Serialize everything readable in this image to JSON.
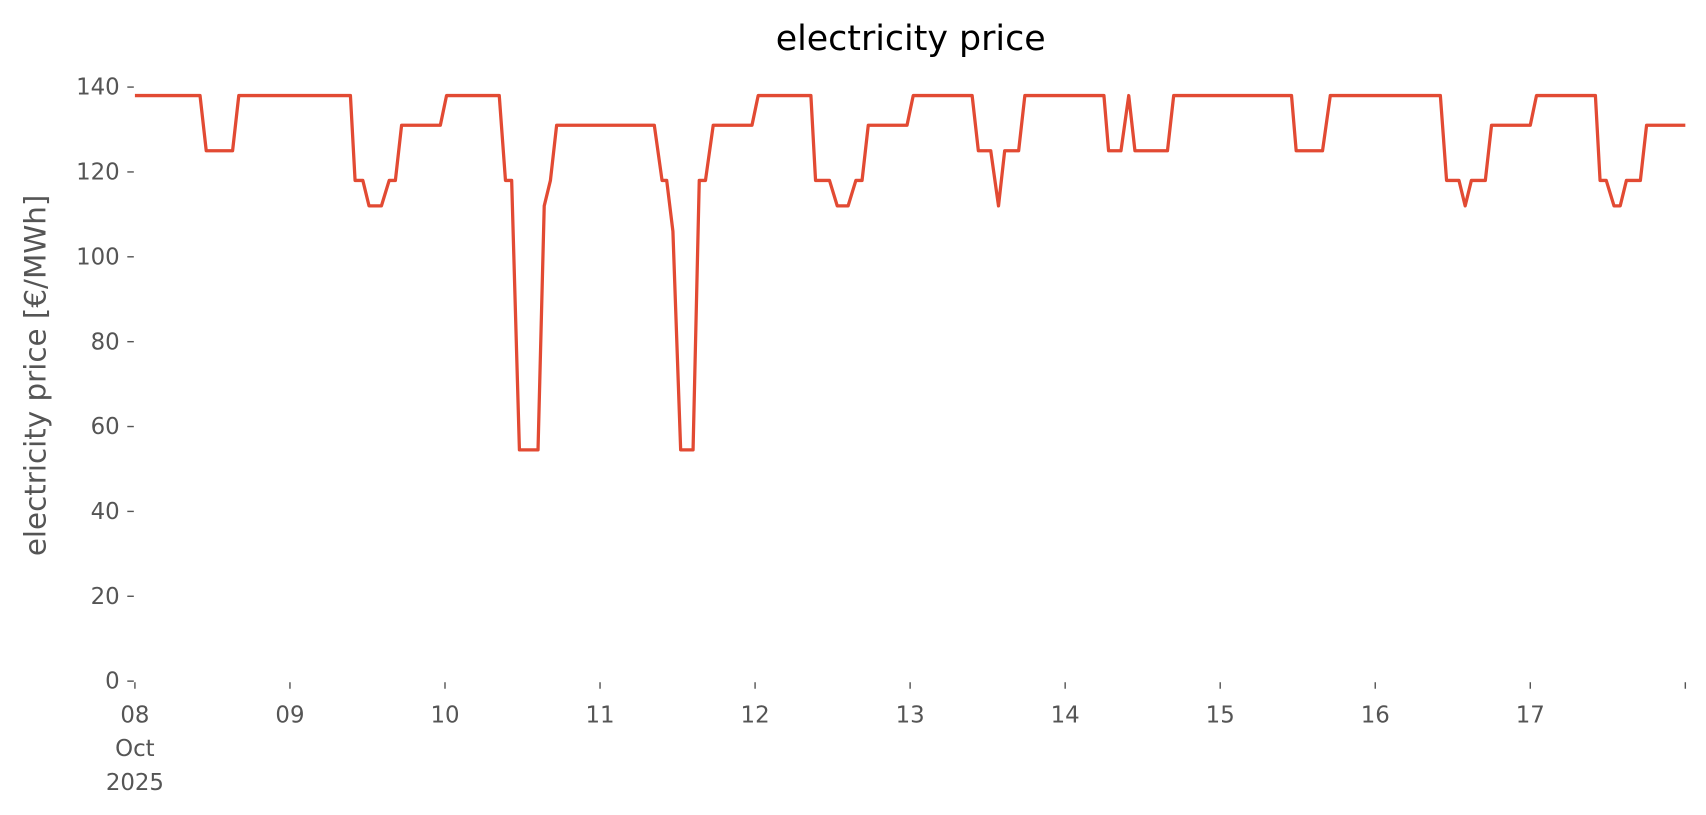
{
  "chart_data": {
    "type": "line",
    "title": "electricity price",
    "ylabel": "electricity price [€/MWh]",
    "x": [
      8.0,
      8.42,
      8.46,
      8.63,
      8.67,
      9.39,
      9.42,
      9.47,
      9.51,
      9.59,
      9.64,
      9.68,
      9.72,
      9.97,
      10.01,
      10.35,
      10.39,
      10.43,
      10.48,
      10.6,
      10.64,
      10.68,
      10.72,
      11.35,
      11.4,
      11.43,
      11.47,
      11.52,
      11.6,
      11.64,
      11.68,
      11.73,
      11.98,
      12.02,
      12.36,
      12.39,
      12.48,
      12.53,
      12.6,
      12.65,
      12.69,
      12.73,
      12.98,
      13.02,
      13.4,
      13.44,
      13.52,
      13.57,
      13.61,
      13.7,
      13.74,
      14.25,
      14.28,
      14.36,
      14.41,
      14.45,
      14.66,
      14.7,
      15.46,
      15.49,
      15.66,
      15.71,
      16.42,
      16.46,
      16.54,
      16.58,
      16.62,
      16.71,
      16.75,
      17.0,
      17.04,
      17.42,
      17.45,
      17.49,
      17.54,
      17.58,
      17.62,
      17.71,
      17.75,
      18.0
    ],
    "series": [
      {
        "name": "electricity price",
        "color": "#e24a33",
        "values": [
          138,
          138,
          125,
          125,
          138,
          138,
          118,
          118,
          112,
          112,
          118,
          118,
          131,
          131,
          138,
          138,
          118,
          118,
          54.5,
          54.5,
          112,
          118,
          131,
          131,
          118,
          118,
          106,
          54.5,
          54.5,
          118,
          118,
          131,
          131,
          138,
          138,
          118,
          118,
          112,
          112,
          118,
          118,
          131,
          131,
          138,
          138,
          125,
          125,
          112,
          125,
          125,
          138,
          138,
          125,
          125,
          138,
          125,
          125,
          138,
          138,
          125,
          125,
          138,
          138,
          118,
          118,
          112,
          118,
          118,
          131,
          131,
          138,
          138,
          118,
          118,
          112,
          112,
          118,
          118,
          131,
          131
        ]
      }
    ],
    "xlim": [
      8,
      18
    ],
    "xticks": [
      {
        "value": 8,
        "label": "08\nOct\n2025"
      },
      {
        "value": 9,
        "label": "09"
      },
      {
        "value": 10,
        "label": "10"
      },
      {
        "value": 11,
        "label": "11"
      },
      {
        "value": 12,
        "label": "12"
      },
      {
        "value": 13,
        "label": "13"
      },
      {
        "value": 14,
        "label": "14"
      },
      {
        "value": 15,
        "label": "15"
      },
      {
        "value": 16,
        "label": "16"
      },
      {
        "value": 17,
        "label": "17"
      }
    ],
    "ylim": [
      0,
      140
    ],
    "yticks": [
      0,
      20,
      40,
      60,
      80,
      100,
      120,
      140
    ],
    "grid": false
  }
}
